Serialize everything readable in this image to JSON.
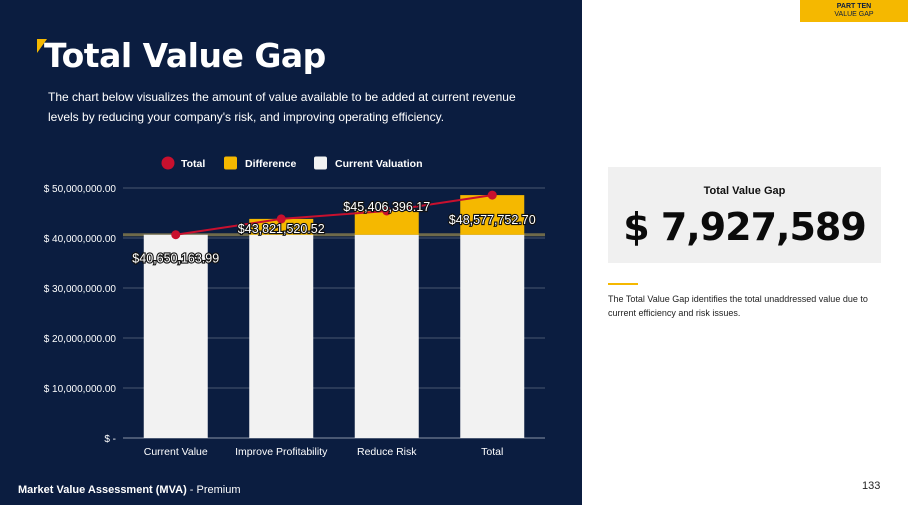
{
  "header": {
    "title": "Total Value Gap",
    "description": "The chart below visualizes the amount of value available to be added at current revenue levels by reducing your company's risk, and improving operating efficiency."
  },
  "badge": {
    "line1": "PART TEN",
    "line2": "VALUE GAP"
  },
  "card": {
    "label": "Total Value Gap",
    "value": "$ 7,927,589"
  },
  "note": "The Total Value Gap identifies the total unaddressed value due to current efficiency and risk issues.",
  "footer": {
    "bold": "Market Value Assessment (MVA)",
    "rest": " - Premium"
  },
  "page_number": "133",
  "colors": {
    "navy": "#0b1d40",
    "accent": "#f5b800",
    "total_line": "#c8102e",
    "current_bar": "#f2f2f2",
    "difference_bar": "#f5b800"
  },
  "chart_data": {
    "type": "bar",
    "categories": [
      "Current Value",
      "Improve Profitability",
      "Reduce Risk",
      "Total"
    ],
    "series": [
      {
        "name": "Total",
        "type": "line",
        "values": [
          40650163.99,
          43821520.52,
          45406396.17,
          48577752.7
        ]
      },
      {
        "name": "Difference",
        "type": "stacked-bar",
        "values": [
          0,
          3171356.53,
          4756232.18,
          7927588.71
        ]
      },
      {
        "name": "Current Valuation",
        "type": "stacked-bar",
        "values": [
          40650163.99,
          40650163.99,
          40650163.99,
          40650163.99
        ]
      }
    ],
    "data_labels": [
      "$40,650,163.99",
      "$43,821,520.52",
      "$45,406,396.17",
      "$48,577,752.70"
    ],
    "yticks": [
      "$ -",
      "$ 10,000,000.00",
      "$ 20,000,000.00",
      "$ 30,000,000.00",
      "$ 40,000,000.00",
      "$ 50,000,000.00"
    ],
    "ylim": [
      0,
      50000000
    ],
    "legend": [
      "Total",
      "Difference",
      "Current Valuation"
    ],
    "legend_position": "top",
    "grid": true
  }
}
